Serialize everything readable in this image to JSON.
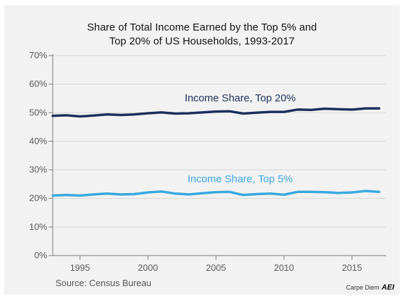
{
  "chart_data": {
    "type": "line",
    "title": [
      "Share of Total Income Earned by the Top 5% and",
      "Top 20% of US Households, 1993-2017"
    ],
    "x": [
      1993,
      1994,
      1995,
      1996,
      1997,
      1998,
      1999,
      2000,
      2001,
      2002,
      2003,
      2004,
      2005,
      2006,
      2007,
      2008,
      2009,
      2010,
      2011,
      2012,
      2013,
      2014,
      2015,
      2016,
      2017
    ],
    "xlim": [
      1993,
      2017.5
    ],
    "ylim": [
      0,
      70
    ],
    "x_ticks": [
      1995,
      2000,
      2005,
      2010,
      2015
    ],
    "x_tick_labels": [
      "1995",
      "2000",
      "2005",
      "2010",
      "2015"
    ],
    "y_ticks": [
      0,
      10,
      20,
      30,
      40,
      50,
      60,
      70
    ],
    "y_tick_labels": [
      "0%",
      "10%",
      "20%",
      "30%",
      "40%",
      "50%",
      "60%",
      "70%"
    ],
    "grid": "horizontal",
    "legend": "none",
    "series": [
      {
        "name": "Income Share, Top 20%",
        "color": "#1b2f5c",
        "values": [
          48.9,
          49.1,
          48.7,
          49.0,
          49.4,
          49.2,
          49.4,
          49.8,
          50.1,
          49.7,
          49.8,
          50.1,
          50.4,
          50.5,
          49.7,
          50.0,
          50.3,
          50.3,
          51.1,
          51.0,
          51.4,
          51.2,
          51.1,
          51.5,
          51.5
        ]
      },
      {
        "name": "Income Share, Top 5%",
        "color": "#3aa8de",
        "values": [
          21.0,
          21.2,
          21.0,
          21.4,
          21.7,
          21.4,
          21.5,
          22.1,
          22.4,
          21.7,
          21.4,
          21.8,
          22.2,
          22.3,
          21.2,
          21.5,
          21.7,
          21.3,
          22.3,
          22.3,
          22.2,
          21.9,
          22.1,
          22.6,
          22.3
        ]
      }
    ],
    "series_label_anchor": [
      "center",
      "center"
    ],
    "source": "Source: Census Bureau",
    "brand_text": "Carpe Diem",
    "brand_logo": "AEI"
  }
}
